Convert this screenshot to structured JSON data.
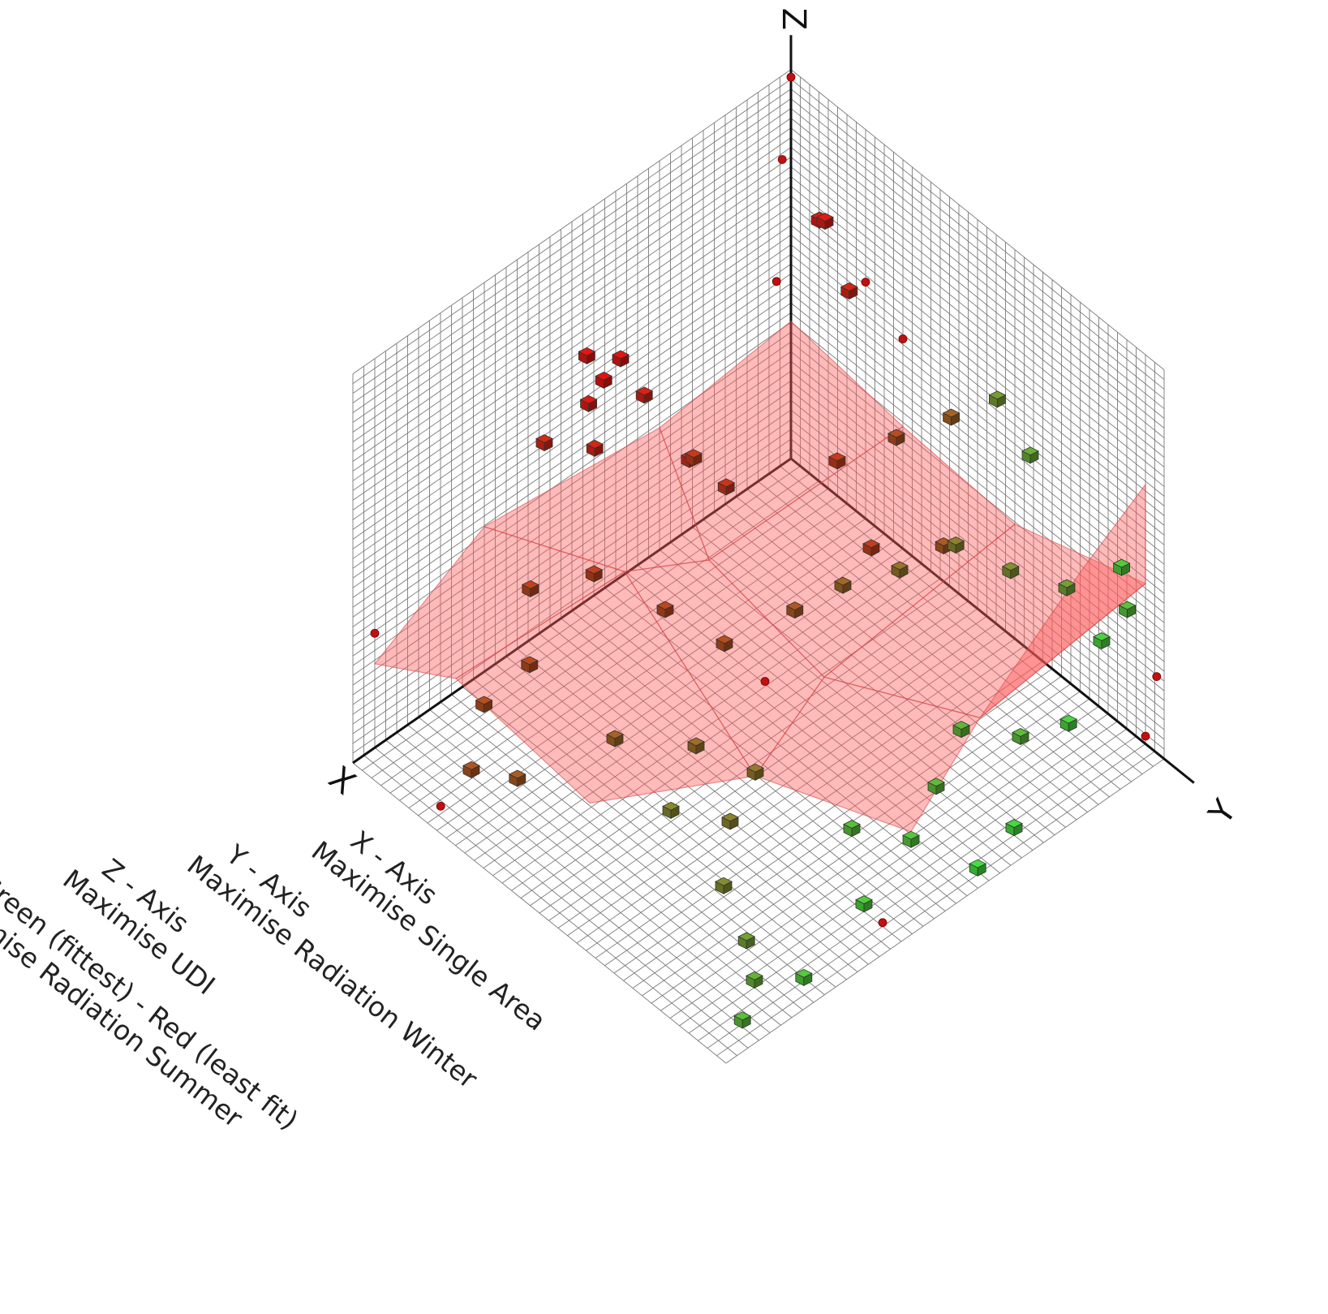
{
  "chart_data": {
    "type": "scatter",
    "title": "",
    "axes": {
      "x": {
        "label": "X"
      },
      "y": {
        "label": "Y"
      },
      "z": {
        "label": "Z"
      }
    },
    "grid": true,
    "legend_lines": [
      "X - Axis",
      "Maximise Single Area",
      "Y - Axis",
      "Maximise Radiation Winter",
      "Z - Axis",
      "Maximise UDI",
      "Green (fittest) - Red (least fit)",
      "Minimise Radiation Summer"
    ],
    "legend_placement": "bottom-left",
    "colors": {
      "fittest": "#40e040",
      "least_fit": "#e81010",
      "surface": "#ff5a5a"
    },
    "points": [
      {
        "x": 0.47,
        "y": 0.05,
        "z": 0.62,
        "f": 0.0
      },
      {
        "x": 0.44,
        "y": 0.06,
        "z": 0.66,
        "f": 0.02
      },
      {
        "x": 0.5,
        "y": 0.04,
        "z": 0.7,
        "f": 0.03
      },
      {
        "x": 0.53,
        "y": 0.08,
        "z": 0.63,
        "f": 0.05
      },
      {
        "x": 0.42,
        "y": 0.1,
        "z": 0.58,
        "f": 0.08
      },
      {
        "x": 0.55,
        "y": 0.12,
        "z": 0.56,
        "f": 0.1
      },
      {
        "x": 0.58,
        "y": 0.02,
        "z": 0.52,
        "f": 0.12
      },
      {
        "x": 0.3,
        "y": 0.08,
        "z": 0.3,
        "f": 0.15
      },
      {
        "x": 0.25,
        "y": 0.12,
        "z": 0.22,
        "f": 0.18
      },
      {
        "x": 0.35,
        "y": 0.15,
        "z": 0.4,
        "f": 0.2
      },
      {
        "x": 0.62,
        "y": 0.2,
        "z": 0.35,
        "f": 0.22
      },
      {
        "x": 0.68,
        "y": 0.1,
        "z": 0.28,
        "f": 0.25
      },
      {
        "x": 0.75,
        "y": 0.18,
        "z": 0.2,
        "f": 0.28
      },
      {
        "x": 0.82,
        "y": 0.14,
        "z": 0.12,
        "f": 0.3
      },
      {
        "x": 0.9,
        "y": 0.2,
        "z": 0.06,
        "f": 0.33
      },
      {
        "x": 0.88,
        "y": 0.3,
        "z": 0.1,
        "f": 0.36
      },
      {
        "x": 0.7,
        "y": 0.35,
        "z": 0.1,
        "f": 0.4
      },
      {
        "x": 0.6,
        "y": 0.45,
        "z": 0.08,
        "f": 0.45
      },
      {
        "x": 0.55,
        "y": 0.55,
        "z": 0.05,
        "f": 0.5
      },
      {
        "x": 0.65,
        "y": 0.6,
        "z": 0.04,
        "f": 0.55
      },
      {
        "x": 0.75,
        "y": 0.7,
        "z": 0.03,
        "f": 0.6
      },
      {
        "x": 0.8,
        "y": 0.82,
        "z": 0.02,
        "f": 0.7
      },
      {
        "x": 0.85,
        "y": 0.9,
        "z": 0.02,
        "f": 0.78
      },
      {
        "x": 0.92,
        "y": 0.95,
        "z": 0.01,
        "f": 0.85
      },
      {
        "x": 0.78,
        "y": 0.95,
        "z": 0.01,
        "f": 0.9
      },
      {
        "x": 0.6,
        "y": 0.9,
        "z": 0.02,
        "f": 0.92
      },
      {
        "x": 0.45,
        "y": 0.85,
        "z": 0.03,
        "f": 0.88
      },
      {
        "x": 0.35,
        "y": 0.8,
        "z": 0.05,
        "f": 0.82
      },
      {
        "x": 0.25,
        "y": 0.75,
        "z": 0.08,
        "f": 0.8
      },
      {
        "x": 0.2,
        "y": 0.85,
        "z": 0.1,
        "f": 0.84
      },
      {
        "x": 0.15,
        "y": 0.92,
        "z": 0.15,
        "f": 0.95
      },
      {
        "x": 0.1,
        "y": 0.95,
        "z": 0.35,
        "f": 0.93
      },
      {
        "x": 0.08,
        "y": 0.98,
        "z": 0.55,
        "f": 0.9
      },
      {
        "x": 0.05,
        "y": 0.96,
        "z": 0.4,
        "f": 0.86
      },
      {
        "x": 0.12,
        "y": 0.88,
        "z": 0.45,
        "f": 0.7
      },
      {
        "x": 0.18,
        "y": 0.8,
        "z": 0.48,
        "f": 0.62
      },
      {
        "x": 0.22,
        "y": 0.7,
        "z": 0.5,
        "f": 0.55
      },
      {
        "x": 0.28,
        "y": 0.62,
        "z": 0.42,
        "f": 0.48
      },
      {
        "x": 0.35,
        "y": 0.55,
        "z": 0.38,
        "f": 0.42
      },
      {
        "x": 0.4,
        "y": 0.48,
        "z": 0.3,
        "f": 0.35
      },
      {
        "x": 0.05,
        "y": 0.7,
        "z": 0.6,
        "f": 0.75
      },
      {
        "x": 0.04,
        "y": 0.6,
        "z": 0.66,
        "f": 0.68
      },
      {
        "x": 0.06,
        "y": 0.5,
        "z": 0.55,
        "f": 0.4
      },
      {
        "x": 0.1,
        "y": 0.4,
        "z": 0.45,
        "f": 0.3
      },
      {
        "x": 0.15,
        "y": 0.3,
        "z": 0.35,
        "f": 0.2
      },
      {
        "x": 0.08,
        "y": 0.25,
        "z": 0.7,
        "f": 0.1
      },
      {
        "x": 0.05,
        "y": 0.15,
        "z": 0.78,
        "f": 0.05
      },
      {
        "x": 0.02,
        "y": 0.1,
        "z": 0.72,
        "f": 0.04
      },
      {
        "x": 0.3,
        "y": 0.95,
        "z": 0.02,
        "f": 0.97
      },
      {
        "x": 0.4,
        "y": 0.97,
        "z": 0.01,
        "f": 0.99
      },
      {
        "x": 0.5,
        "y": 0.75,
        "z": 0.02,
        "f": 0.85
      },
      {
        "x": 0.7,
        "y": 0.5,
        "z": 0.03,
        "f": 0.58
      },
      {
        "x": 0.45,
        "y": 0.35,
        "z": 0.15,
        "f": 0.3
      },
      {
        "x": 0.5,
        "y": 0.25,
        "z": 0.2,
        "f": 0.26
      },
      {
        "x": 0.2,
        "y": 0.45,
        "z": 0.28,
        "f": 0.22
      },
      {
        "x": 0.12,
        "y": 0.55,
        "z": 0.3,
        "f": 0.35
      }
    ],
    "tiny_points": [
      {
        "x": 0.0,
        "y": 0.0,
        "z": 1.0
      },
      {
        "x": 0.02,
        "y": 0.0,
        "z": 0.8
      },
      {
        "x": 0.05,
        "y": 0.02,
        "z": 0.52
      },
      {
        "x": 0.0,
        "y": 0.2,
        "z": 0.62
      },
      {
        "x": 0.0,
        "y": 0.3,
        "z": 0.55
      },
      {
        "x": 0.95,
        "y": 0.0,
        "z": 0.3
      },
      {
        "x": 0.0,
        "y": 0.98,
        "z": 0.2
      },
      {
        "x": 0.0,
        "y": 0.95,
        "z": 0.02
      },
      {
        "x": 0.97,
        "y": 0.2,
        "z": 0.02
      },
      {
        "x": 0.4,
        "y": 0.4,
        "z": 0.05
      },
      {
        "x": 0.6,
        "y": 0.95,
        "z": 0.01
      }
    ],
    "surface_polygons": [
      [
        [
          0.95,
          0.0,
          0.22
        ],
        [
          0.7,
          0.0,
          0.38
        ],
        [
          0.55,
          0.2,
          0.3
        ],
        [
          0.85,
          0.1,
          0.18
        ]
      ],
      [
        [
          0.7,
          0.0,
          0.38
        ],
        [
          0.3,
          0.0,
          0.32
        ],
        [
          0.4,
          0.25,
          0.25
        ],
        [
          0.55,
          0.2,
          0.3
        ]
      ],
      [
        [
          0.3,
          0.0,
          0.32
        ],
        [
          0.0,
          0.0,
          0.36
        ],
        [
          0.0,
          0.3,
          0.32
        ],
        [
          0.4,
          0.25,
          0.25
        ]
      ],
      [
        [
          0.85,
          0.1,
          0.18
        ],
        [
          0.55,
          0.2,
          0.3
        ],
        [
          0.55,
          0.55,
          0.04
        ],
        [
          0.8,
          0.4,
          0.05
        ]
      ],
      [
        [
          0.55,
          0.2,
          0.3
        ],
        [
          0.4,
          0.25,
          0.25
        ],
        [
          0.35,
          0.5,
          0.1
        ],
        [
          0.55,
          0.55,
          0.04
        ]
      ],
      [
        [
          0.4,
          0.25,
          0.25
        ],
        [
          0.0,
          0.3,
          0.32
        ],
        [
          0.0,
          0.6,
          0.3
        ],
        [
          0.35,
          0.5,
          0.1
        ]
      ],
      [
        [
          0.35,
          0.5,
          0.1
        ],
        [
          0.0,
          0.6,
          0.3
        ],
        [
          0.0,
          0.95,
          0.42
        ],
        [
          0.25,
          0.8,
          0.15
        ]
      ],
      [
        [
          0.55,
          0.55,
          0.04
        ],
        [
          0.35,
          0.5,
          0.1
        ],
        [
          0.25,
          0.8,
          0.15
        ],
        [
          0.45,
          0.85,
          0.05
        ]
      ],
      [
        [
          0.25,
          0.8,
          0.15
        ],
        [
          0.0,
          0.95,
          0.42
        ],
        [
          0.0,
          0.95,
          0.68
        ],
        [
          0.1,
          0.9,
          0.5
        ]
      ]
    ]
  }
}
